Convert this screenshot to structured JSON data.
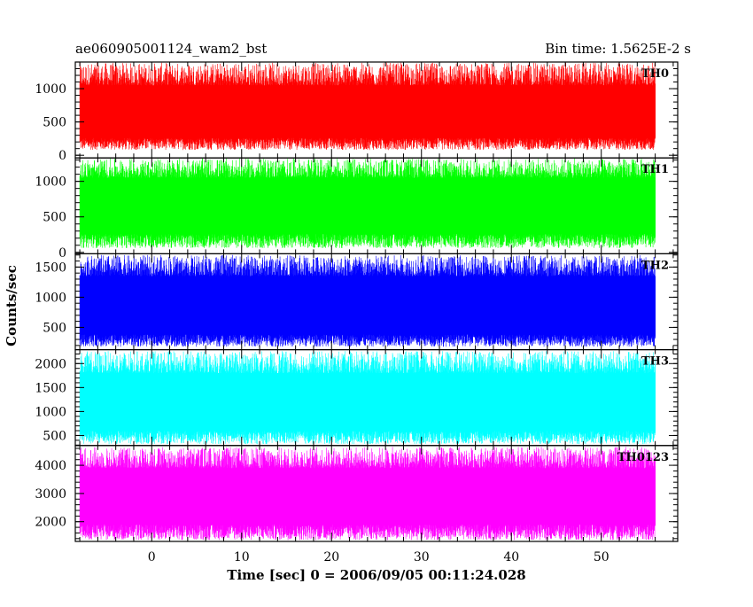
{
  "header": {
    "left": "ae060905001124_wam2_bst",
    "right": "Bin time: 1.5625E-2 s"
  },
  "chart_data": {
    "type": "line",
    "title": "ae060905001124_wam2_bst",
    "subtitle": "Bin time: 1.5625E-2 s",
    "xlabel": "Time [sec] 0 = 2006/09/05 00:11:24.028",
    "ylabel": "Counts/sec",
    "xlim": [
      -8.5,
      58.5
    ],
    "x_range_data": [
      -8,
      56
    ],
    "xticks": [
      0,
      10,
      20,
      30,
      40,
      50
    ],
    "xtick_labels": [
      "0",
      "10",
      "20",
      "30",
      "40",
      "50"
    ],
    "grid": false,
    "panels": [
      {
        "name": "TH0",
        "color": "#ff0000",
        "ylim": [
          -40,
          1400
        ],
        "yticks": [
          0,
          500,
          1000
        ],
        "ytick_labels": [
          "0",
          "500",
          "1000"
        ],
        "mean": 630,
        "min_envelope": [
          80,
          260
        ],
        "max_envelope": [
          1050,
          1390
        ]
      },
      {
        "name": "TH1",
        "color": "#00ff00",
        "ylim": [
          -20,
          1330
        ],
        "yticks": [
          0,
          500,
          1000
        ],
        "ytick_labels": [
          "0",
          "500",
          "1000"
        ],
        "mean": 640,
        "min_envelope": [
          60,
          260
        ],
        "max_envelope": [
          1050,
          1320
        ]
      },
      {
        "name": "TH2",
        "color": "#0000ff",
        "ylim": [
          130,
          1720
        ],
        "yticks": [
          500,
          1000,
          1500
        ],
        "ytick_labels": [
          "500",
          "1000",
          "1500"
        ],
        "mean": 900,
        "min_envelope": [
          180,
          380
        ],
        "max_envelope": [
          1350,
          1700
        ]
      },
      {
        "name": "TH3",
        "color": "#00ffff",
        "ylim": [
          290,
          2290
        ],
        "yticks": [
          500,
          1000,
          1500,
          2000
        ],
        "ytick_labels": [
          "500",
          "1000",
          "1500",
          "2000"
        ],
        "mean": 1250,
        "min_envelope": [
          320,
          600
        ],
        "max_envelope": [
          1800,
          2260
        ]
      },
      {
        "name": "TH0123",
        "color": "#ff00ff",
        "ylim": [
          1300,
          4700
        ],
        "yticks": [
          2000,
          3000,
          4000
        ],
        "ytick_labels": [
          "2000",
          "3000",
          "4000"
        ],
        "mean": 2900,
        "min_envelope": [
          1350,
          1900
        ],
        "max_envelope": [
          3900,
          4650
        ]
      }
    ]
  }
}
